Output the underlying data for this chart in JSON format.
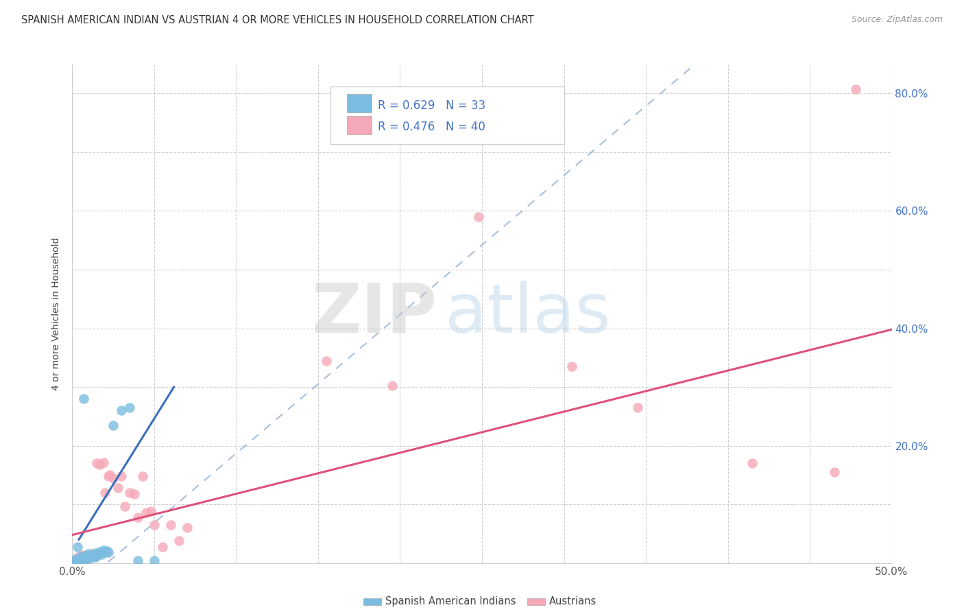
{
  "title": "SPANISH AMERICAN INDIAN VS AUSTRIAN 4 OR MORE VEHICLES IN HOUSEHOLD CORRELATION CHART",
  "source": "Source: ZipAtlas.com",
  "ylabel": "4 or more Vehicles in Household",
  "x_min": 0.0,
  "x_max": 0.5,
  "y_min": 0.0,
  "y_max": 0.85,
  "x_ticks": [
    0.0,
    0.05,
    0.1,
    0.15,
    0.2,
    0.25,
    0.3,
    0.35,
    0.4,
    0.45,
    0.5
  ],
  "y_ticks": [
    0.0,
    0.1,
    0.2,
    0.3,
    0.4,
    0.5,
    0.6,
    0.7,
    0.8
  ],
  "blue_R": 0.629,
  "blue_N": 33,
  "pink_R": 0.476,
  "pink_N": 40,
  "blue_color": "#7bbde0",
  "pink_color": "#f5a8b8",
  "blue_line_color": "#3a6fbe",
  "pink_line_color": "#e0507a",
  "blue_dashed_color": "#a0b8d8",
  "blue_scatter": [
    [
      0.001,
      0.005
    ],
    [
      0.002,
      0.003
    ],
    [
      0.003,
      0.004
    ],
    [
      0.004,
      0.003
    ],
    [
      0.005,
      0.007
    ],
    [
      0.005,
      0.011
    ],
    [
      0.006,
      0.008
    ],
    [
      0.007,
      0.006
    ],
    [
      0.008,
      0.009
    ],
    [
      0.008,
      0.013
    ],
    [
      0.009,
      0.007
    ],
    [
      0.01,
      0.012
    ],
    [
      0.01,
      0.016
    ],
    [
      0.011,
      0.009
    ],
    [
      0.012,
      0.011
    ],
    [
      0.013,
      0.014
    ],
    [
      0.014,
      0.01
    ],
    [
      0.014,
      0.017
    ],
    [
      0.015,
      0.013
    ],
    [
      0.016,
      0.016
    ],
    [
      0.017,
      0.019
    ],
    [
      0.018,
      0.015
    ],
    [
      0.019,
      0.022
    ],
    [
      0.02,
      0.018
    ],
    [
      0.021,
      0.021
    ],
    [
      0.022,
      0.018
    ],
    [
      0.003,
      0.028
    ],
    [
      0.025,
      0.235
    ],
    [
      0.03,
      0.26
    ],
    [
      0.035,
      0.265
    ],
    [
      0.04,
      0.004
    ],
    [
      0.05,
      0.004
    ],
    [
      0.007,
      0.28
    ]
  ],
  "pink_scatter": [
    [
      0.002,
      0.005
    ],
    [
      0.003,
      0.01
    ],
    [
      0.004,
      0.007
    ],
    [
      0.005,
      0.004
    ],
    [
      0.006,
      0.014
    ],
    [
      0.007,
      0.006
    ],
    [
      0.008,
      0.004
    ],
    [
      0.009,
      0.012
    ],
    [
      0.01,
      0.008
    ],
    [
      0.012,
      0.016
    ],
    [
      0.014,
      0.014
    ],
    [
      0.015,
      0.17
    ],
    [
      0.017,
      0.168
    ],
    [
      0.019,
      0.172
    ],
    [
      0.02,
      0.12
    ],
    [
      0.022,
      0.148
    ],
    [
      0.023,
      0.15
    ],
    [
      0.025,
      0.145
    ],
    [
      0.028,
      0.128
    ],
    [
      0.03,
      0.148
    ],
    [
      0.032,
      0.097
    ],
    [
      0.035,
      0.12
    ],
    [
      0.038,
      0.118
    ],
    [
      0.04,
      0.078
    ],
    [
      0.043,
      0.148
    ],
    [
      0.045,
      0.086
    ],
    [
      0.048,
      0.088
    ],
    [
      0.05,
      0.065
    ],
    [
      0.055,
      0.028
    ],
    [
      0.06,
      0.065
    ],
    [
      0.065,
      0.038
    ],
    [
      0.07,
      0.06
    ],
    [
      0.155,
      0.345
    ],
    [
      0.195,
      0.302
    ],
    [
      0.248,
      0.59
    ],
    [
      0.305,
      0.335
    ],
    [
      0.345,
      0.265
    ],
    [
      0.415,
      0.17
    ],
    [
      0.465,
      0.155
    ],
    [
      0.478,
      0.808
    ]
  ],
  "blue_trendline_solid": [
    [
      0.004,
      0.04
    ],
    [
      0.062,
      0.3
    ]
  ],
  "blue_trendline_dashed": [
    [
      0.0,
      -0.05
    ],
    [
      0.38,
      0.85
    ]
  ],
  "pink_trendline": [
    [
      0.0,
      0.048
    ],
    [
      0.5,
      0.398
    ]
  ],
  "watermark_zip": "ZIP",
  "watermark_atlas": "atlas",
  "legend_blue_label": "Spanish American Indians",
  "legend_pink_label": "Austrians"
}
